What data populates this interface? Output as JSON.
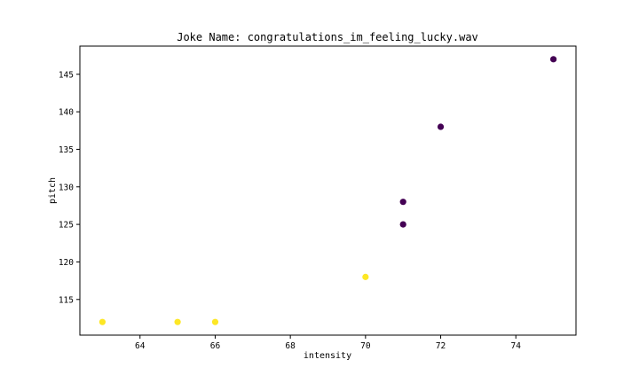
{
  "chart_data": {
    "type": "scatter",
    "title": "Joke Name: congratulations_im_feeling_lucky.wav",
    "xlabel": "intensity",
    "ylabel": "pitch",
    "xlim": [
      62.4,
      75.6
    ],
    "ylim": [
      110.25,
      148.75
    ],
    "xticks": [
      64,
      66,
      68,
      70,
      72,
      74
    ],
    "yticks": [
      115,
      120,
      125,
      130,
      135,
      140,
      145
    ],
    "grid": false,
    "colors": {
      "purple": "#440154",
      "yellow": "#fde725"
    },
    "points": [
      {
        "x": 63,
        "y": 112,
        "color": "#fde725"
      },
      {
        "x": 65,
        "y": 112,
        "color": "#fde725"
      },
      {
        "x": 66,
        "y": 112,
        "color": "#fde725"
      },
      {
        "x": 70,
        "y": 118,
        "color": "#fde725"
      },
      {
        "x": 71,
        "y": 125,
        "color": "#440154"
      },
      {
        "x": 71,
        "y": 128,
        "color": "#440154"
      },
      {
        "x": 72,
        "y": 138,
        "color": "#440154"
      },
      {
        "x": 75,
        "y": 147,
        "color": "#440154"
      }
    ]
  }
}
